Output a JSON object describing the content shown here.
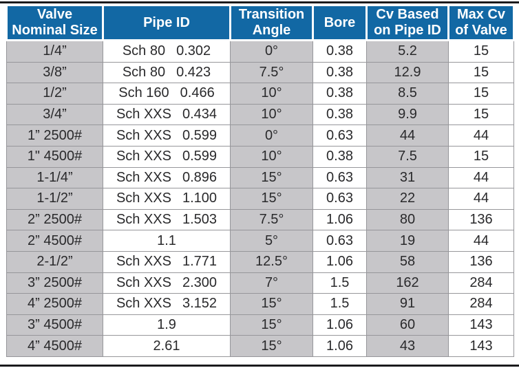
{
  "colors": {
    "header_bg": "#1268a4",
    "header_text": "#ffffff",
    "shaded_cell": "#c7c6c9",
    "grid": "#96969a",
    "text": "#29292b",
    "rule": "#1a1a1c",
    "page_bg": "#ffffff"
  },
  "table": {
    "columns": [
      {
        "label": "Valve\nNominal Size"
      },
      {
        "label": "Pipe ID"
      },
      {
        "label": "Transition\nAngle"
      },
      {
        "label": "Bore"
      },
      {
        "label": "Cv Based\non Pipe ID"
      },
      {
        "label": "Max Cv\nof Valve"
      }
    ],
    "rows": [
      {
        "size": "1/4”",
        "sch": "Sch 80",
        "pipe_id": "0.302",
        "angle": "0°",
        "bore": "0.38",
        "cv_pipe_id": "5.2",
        "max_cv": "15"
      },
      {
        "size": "3/8”",
        "sch": "Sch 80",
        "pipe_id": "0.423",
        "angle": "7.5°",
        "bore": "0.38",
        "cv_pipe_id": "12.9",
        "max_cv": "15"
      },
      {
        "size": "1/2”",
        "sch": "Sch 160",
        "pipe_id": "0.466",
        "angle": "10°",
        "bore": "0.38",
        "cv_pipe_id": "8.5",
        "max_cv": "15"
      },
      {
        "size": "3/4”",
        "sch": "Sch XXS",
        "pipe_id": "0.434",
        "angle": "10°",
        "bore": "0.38",
        "cv_pipe_id": "9.9",
        "max_cv": "15"
      },
      {
        "size": "1” 2500#",
        "sch": "Sch XXS",
        "pipe_id": "0.599",
        "angle": "0°",
        "bore": "0.63",
        "cv_pipe_id": "44",
        "max_cv": "44"
      },
      {
        "size": "1\" 4500#",
        "sch": "Sch XXS",
        "pipe_id": "0.599",
        "angle": "10°",
        "bore": "0.38",
        "cv_pipe_id": "7.5",
        "max_cv": "15"
      },
      {
        "size": "1-1/4”",
        "sch": "Sch XXS",
        "pipe_id": "0.896",
        "angle": "15°",
        "bore": "0.63",
        "cv_pipe_id": "31",
        "max_cv": "44"
      },
      {
        "size": "1-1/2”",
        "sch": "Sch XXS",
        "pipe_id": "1.100",
        "angle": "15°",
        "bore": "0.63",
        "cv_pipe_id": "22",
        "max_cv": "44"
      },
      {
        "size": "2” 2500#",
        "sch": "Sch XXS",
        "pipe_id": "1.503",
        "angle": "7.5°",
        "bore": "1.06",
        "cv_pipe_id": "80",
        "max_cv": "136"
      },
      {
        "size": "2” 4500#",
        "sch": "",
        "pipe_id": "1.1",
        "angle": "5°",
        "bore": "0.63",
        "cv_pipe_id": "19",
        "max_cv": "44"
      },
      {
        "size": "2-1/2”",
        "sch": "Sch XXS",
        "pipe_id": "1.771",
        "angle": "12.5°",
        "bore": "1.06",
        "cv_pipe_id": "58",
        "max_cv": "136"
      },
      {
        "size": "3” 2500#",
        "sch": "Sch XXS",
        "pipe_id": "2.300",
        "angle": "7°",
        "bore": "1.5",
        "cv_pipe_id": "162",
        "max_cv": "284"
      },
      {
        "size": "4” 2500#",
        "sch": "Sch XXS",
        "pipe_id": "3.152",
        "angle": "15°",
        "bore": "1.5",
        "cv_pipe_id": "91",
        "max_cv": "284"
      },
      {
        "size": "3” 4500#",
        "sch": "",
        "pipe_id": "1.9",
        "angle": "15°",
        "bore": "1.06",
        "cv_pipe_id": "60",
        "max_cv": "143"
      },
      {
        "size": "4” 4500#",
        "sch": "",
        "pipe_id": "2.61",
        "angle": "15°",
        "bore": "1.06",
        "cv_pipe_id": "43",
        "max_cv": "143"
      }
    ]
  }
}
